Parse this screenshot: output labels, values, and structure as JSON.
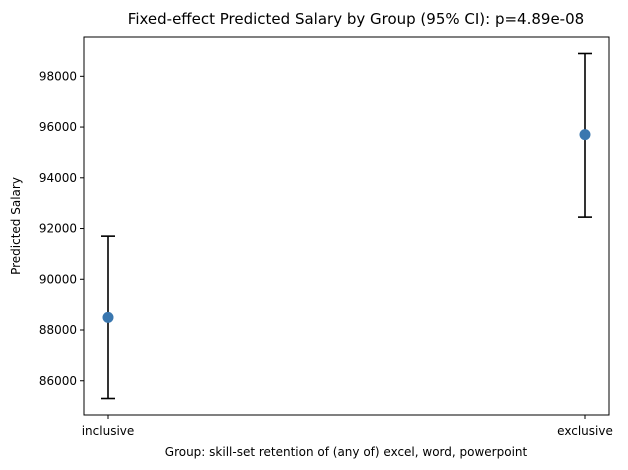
{
  "chart_data": {
    "type": "scatter",
    "title": "Fixed-effect Predicted Salary by Group (95% CI): p=4.89e-08",
    "xlabel": "Group: skill-set retention of (any of) excel, word, powerpoint",
    "ylabel": "Predicted Salary",
    "categories": [
      "inclusive",
      "exclusive"
    ],
    "values": [
      88500,
      95700
    ],
    "ci_lower": [
      85300,
      92450
    ],
    "ci_upper": [
      91700,
      98900
    ],
    "ylim": [
      84650,
      99550
    ],
    "yticks": [
      86000,
      88000,
      90000,
      92000,
      94000,
      96000,
      98000
    ],
    "grid": false,
    "marker_color": "#3a77af",
    "errorbar_color": "#000000"
  }
}
